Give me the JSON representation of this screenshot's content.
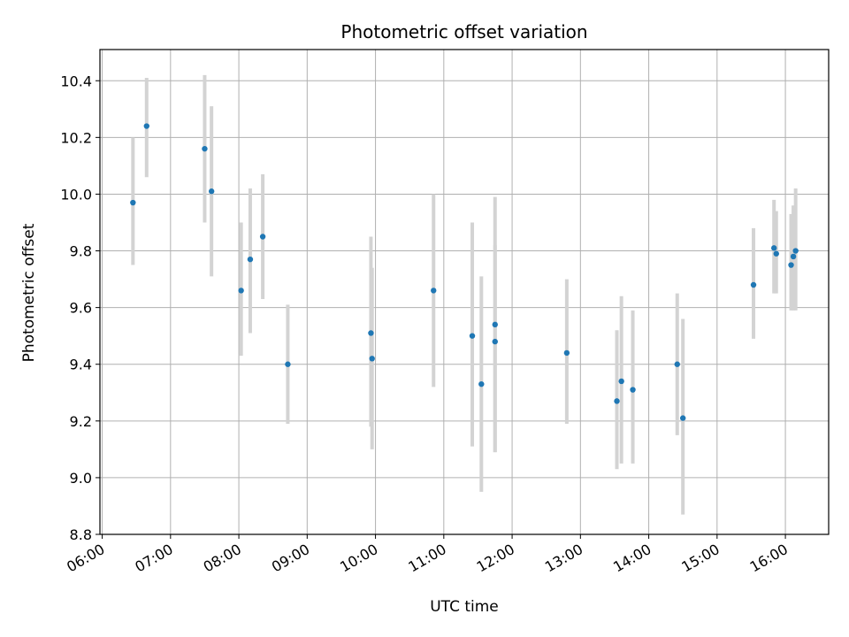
{
  "chart_data": {
    "type": "scatter",
    "title": "Photometric offset variation",
    "xlabel": "UTC time",
    "ylabel": "Photometric offset",
    "xlim": [
      "05:58",
      "16:38"
    ],
    "ylim": [
      8.8,
      10.51
    ],
    "x_ticks": [
      "06:00",
      "07:00",
      "08:00",
      "09:00",
      "10:00",
      "11:00",
      "12:00",
      "13:00",
      "14:00",
      "15:00",
      "16:00"
    ],
    "y_ticks": [
      "8.8",
      "9.0",
      "9.2",
      "9.4",
      "9.6",
      "9.8",
      "10.0",
      "10.2",
      "10.4"
    ],
    "grid": true,
    "colors": {
      "point": "#1f77b4",
      "errorbar": "#d3d3d3",
      "grid": "#b0b0b0"
    },
    "series": [
      {
        "points": [
          {
            "x": "06:27",
            "y": 9.97,
            "low": 9.75,
            "high": 10.2
          },
          {
            "x": "06:39",
            "y": 10.24,
            "low": 10.06,
            "high": 10.41
          },
          {
            "x": "07:30",
            "y": 10.16,
            "low": 9.9,
            "high": 10.42
          },
          {
            "x": "07:36",
            "y": 10.01,
            "low": 9.71,
            "high": 10.31
          },
          {
            "x": "08:02",
            "y": 9.66,
            "low": 9.43,
            "high": 9.9
          },
          {
            "x": "08:10",
            "y": 9.77,
            "low": 9.51,
            "high": 10.02
          },
          {
            "x": "08:21",
            "y": 9.85,
            "low": 9.63,
            "high": 10.07
          },
          {
            "x": "08:43",
            "y": 9.4,
            "low": 9.19,
            "high": 9.61
          },
          {
            "x": "09:56",
            "y": 9.51,
            "low": 9.18,
            "high": 9.85
          },
          {
            "x": "09:57",
            "y": 9.42,
            "low": 9.1,
            "high": 9.74
          },
          {
            "x": "10:51",
            "y": 9.66,
            "low": 9.32,
            "high": 10.0
          },
          {
            "x": "11:25",
            "y": 9.5,
            "low": 9.11,
            "high": 9.9
          },
          {
            "x": "11:33",
            "y": 9.33,
            "low": 8.95,
            "high": 9.71
          },
          {
            "x": "11:45",
            "y": 9.54,
            "low": 9.09,
            "high": 9.99
          },
          {
            "x": "11:45",
            "y": 9.48,
            "low": 9.09,
            "high": 9.82
          },
          {
            "x": "12:48",
            "y": 9.44,
            "low": 9.19,
            "high": 9.7
          },
          {
            "x": "13:32",
            "y": 9.27,
            "low": 9.03,
            "high": 9.52
          },
          {
            "x": "13:36",
            "y": 9.34,
            "low": 9.05,
            "high": 9.64
          },
          {
            "x": "13:46",
            "y": 9.31,
            "low": 9.05,
            "high": 9.59
          },
          {
            "x": "14:25",
            "y": 9.4,
            "low": 9.15,
            "high": 9.65
          },
          {
            "x": "14:30",
            "y": 9.21,
            "low": 8.87,
            "high": 9.56
          },
          {
            "x": "15:32",
            "y": 9.68,
            "low": 9.49,
            "high": 9.88
          },
          {
            "x": "15:50",
            "y": 9.81,
            "low": 9.65,
            "high": 9.98
          },
          {
            "x": "15:52",
            "y": 9.79,
            "low": 9.65,
            "high": 9.94
          },
          {
            "x": "16:05",
            "y": 9.75,
            "low": 9.59,
            "high": 9.93
          },
          {
            "x": "16:07",
            "y": 9.78,
            "low": 9.59,
            "high": 9.96
          },
          {
            "x": "16:09",
            "y": 9.8,
            "low": 9.59,
            "high": 10.02
          }
        ]
      }
    ]
  }
}
